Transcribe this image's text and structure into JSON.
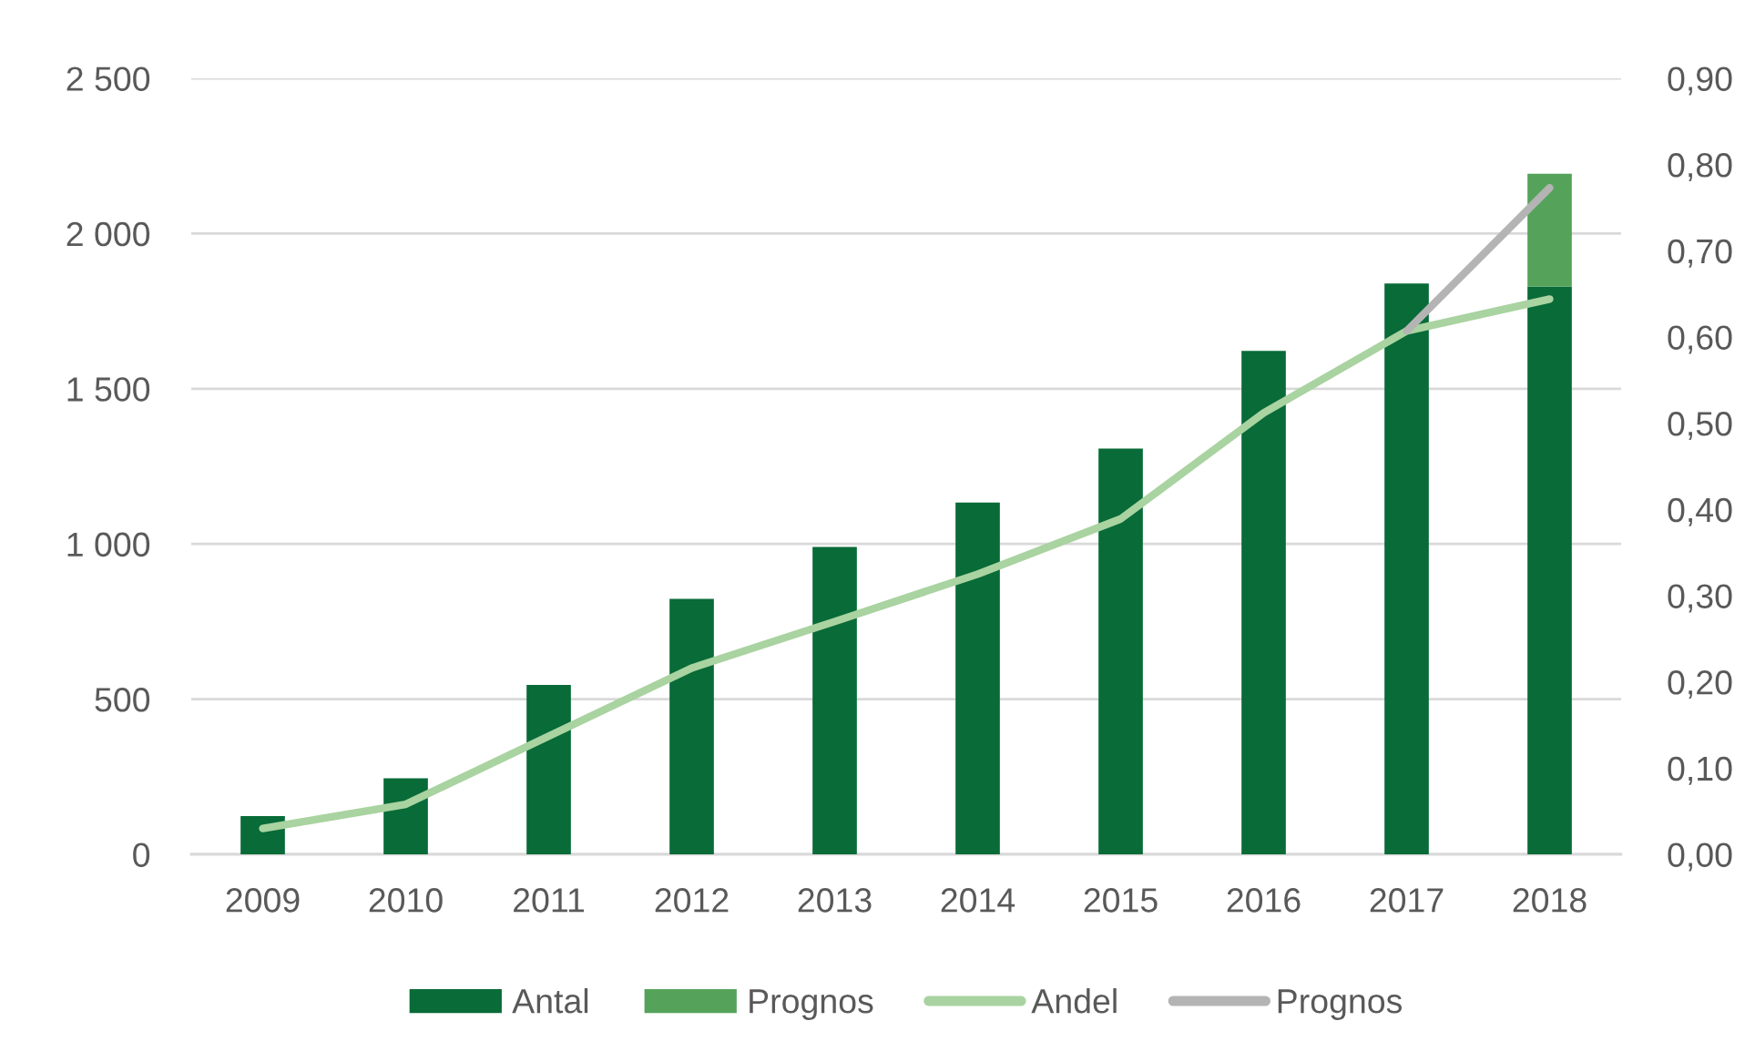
{
  "chart_data": {
    "type": "bar",
    "stacked": true,
    "categories": [
      "2009",
      "2010",
      "2011",
      "2012",
      "2013",
      "2014",
      "2015",
      "2016",
      "2017",
      "2018"
    ],
    "series": [
      {
        "name": "Antal",
        "color": "#086b38",
        "values": [
          123,
          245,
          546,
          823,
          990,
          1133,
          1307,
          1622,
          1839,
          1829
        ]
      },
      {
        "name": "Prognos",
        "color": "#55a35a",
        "values": [
          null,
          null,
          null,
          null,
          null,
          null,
          null,
          null,
          null,
          364
        ]
      },
      {
        "name": "Andel",
        "type": "line",
        "axis": "y2",
        "color": "#a9d3a0",
        "values": [
          0.03,
          0.058,
          0.137,
          0.216,
          0.27,
          0.325,
          0.389,
          0.512,
          0.607,
          0.644
        ]
      },
      {
        "name": "Prognos",
        "type": "line",
        "axis": "y2",
        "color": "#b4b4b4",
        "values": [
          null,
          null,
          null,
          null,
          null,
          null,
          null,
          null,
          0.607,
          0.773
        ]
      }
    ],
    "ylim": [
      0,
      2500
    ],
    "yticks": [
      0,
      500,
      {
        "value": 1000,
        "label": "1 000"
      },
      {
        "value": 1500,
        "label": "1 500"
      },
      {
        "value": 2000,
        "label": "2 000"
      },
      {
        "value": 2500,
        "label": "2 500"
      }
    ],
    "y2lim": [
      0,
      0.9
    ],
    "y2ticks": [
      {
        "value": 0,
        "label": "0,00"
      },
      {
        "value": 0.1,
        "label": "0,10"
      },
      {
        "value": 0.2,
        "label": "0,20"
      },
      {
        "value": 0.3,
        "label": "0,30"
      },
      {
        "value": 0.4,
        "label": "0,40"
      },
      {
        "value": 0.5,
        "label": "0,50"
      },
      {
        "value": 0.6,
        "label": "0,60"
      },
      {
        "value": 0.7,
        "label": "0,70"
      },
      {
        "value": 0.8,
        "label": "0,80"
      },
      {
        "value": 0.9,
        "label": "0,90"
      }
    ],
    "grid": "y",
    "legend": "bottom",
    "marker": "none",
    "line_style": "solid"
  }
}
